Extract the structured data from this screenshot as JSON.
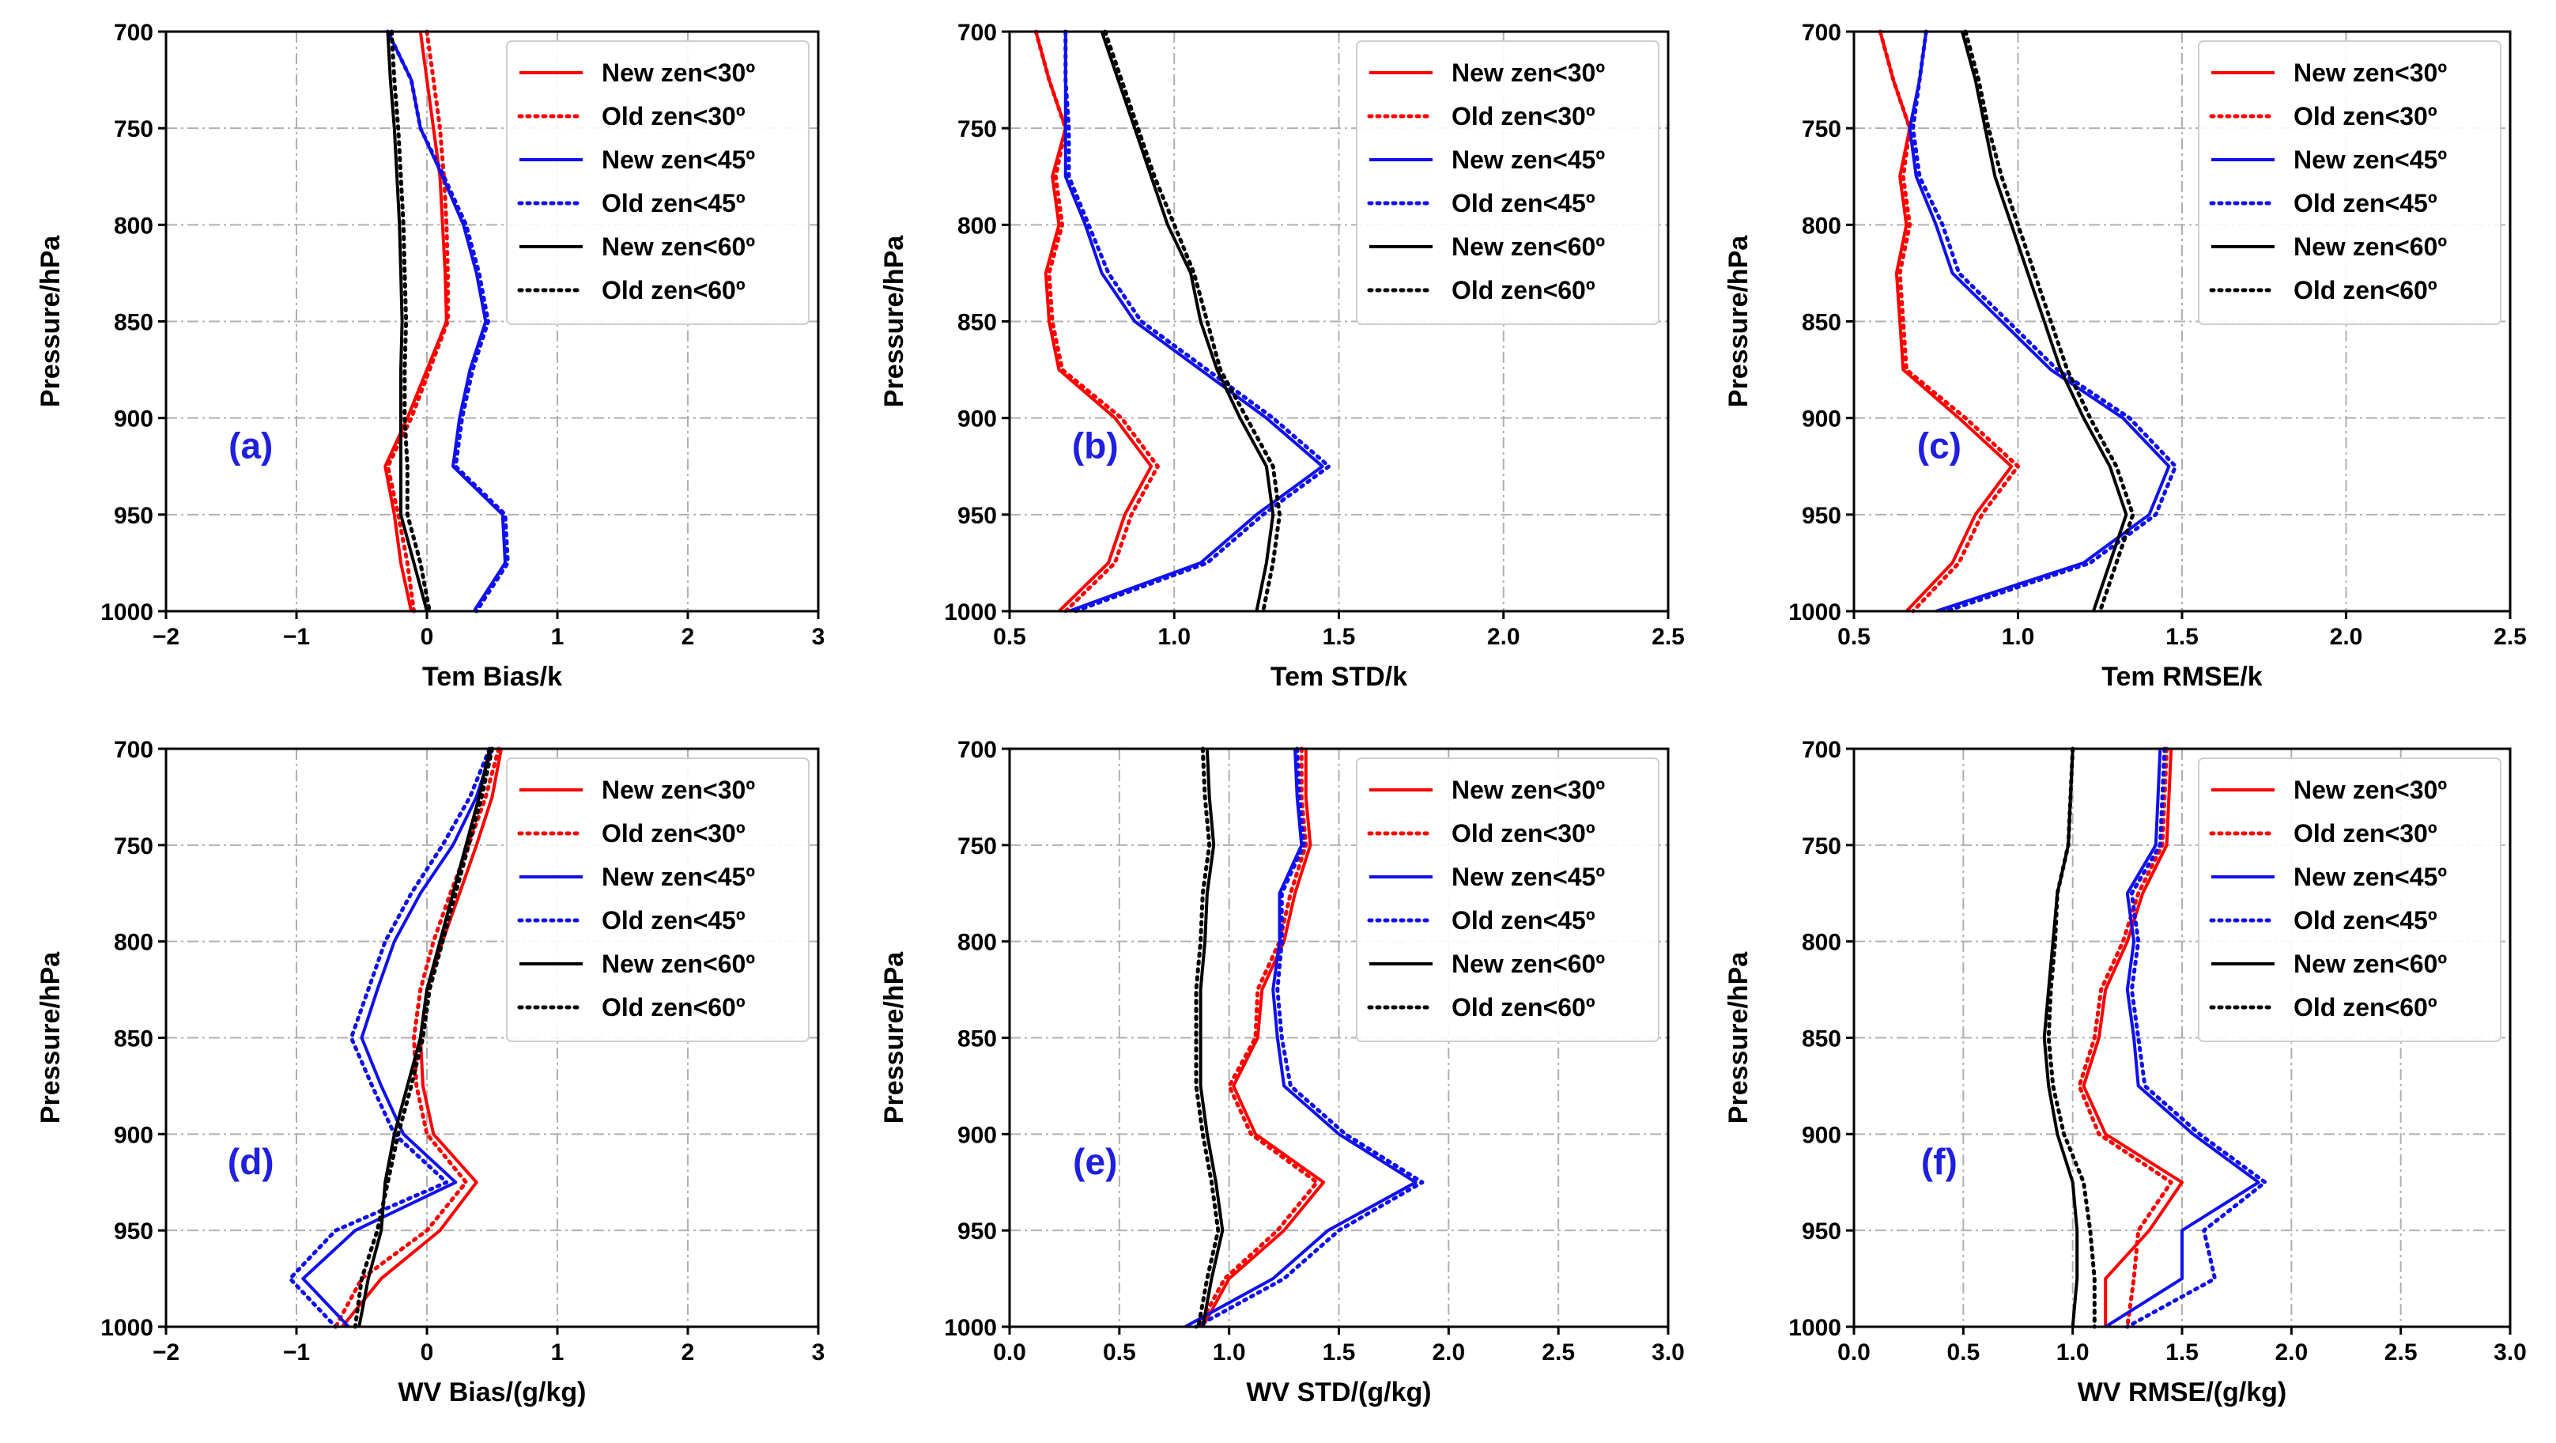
{
  "figure": {
    "colors": {
      "new30": "#ff0000",
      "old30": "#ff0000",
      "new45": "#1010ee",
      "old45": "#1010ee",
      "new60": "#000000",
      "old60": "#000000",
      "grid": "#b0b0b0"
    }
  },
  "chart_data": [
    {
      "type": "line",
      "panel": "(a)",
      "xlabel": "Tem Bias/k",
      "ylabel": "Pressure/hPa",
      "xlim": [
        -2,
        3
      ],
      "xticks": [
        -2,
        -1,
        0,
        1,
        2,
        3
      ],
      "xtick_labels": [
        "−2",
        "−1",
        "0",
        "1",
        "2",
        "3"
      ],
      "ylim": [
        700,
        1000
      ],
      "yticks": [
        700,
        750,
        800,
        850,
        900,
        950,
        1000
      ],
      "ytick_labels": [
        "700",
        "750",
        "800",
        "850",
        "900",
        "950",
        "1000"
      ],
      "grid": true,
      "legend_position": "top-right",
      "pressure": [
        700,
        725,
        750,
        775,
        800,
        825,
        850,
        875,
        900,
        925,
        950,
        975,
        1000
      ],
      "series": [
        {
          "name": "New zen<30º",
          "key": "new30",
          "style": "solid",
          "values": [
            -0.05,
            0.0,
            0.05,
            0.1,
            0.12,
            0.14,
            0.15,
            0.0,
            -0.15,
            -0.32,
            -0.25,
            -0.2,
            -0.12
          ]
        },
        {
          "name": "Old zen<30º",
          "key": "old30",
          "style": "dotted",
          "values": [
            0.0,
            0.05,
            0.1,
            0.13,
            0.15,
            0.16,
            0.16,
            0.02,
            -0.12,
            -0.3,
            -0.22,
            -0.15,
            -0.1
          ]
        },
        {
          "name": "New zen<45º",
          "key": "new45",
          "style": "solid",
          "values": [
            -0.3,
            -0.12,
            -0.05,
            0.12,
            0.28,
            0.38,
            0.45,
            0.33,
            0.25,
            0.2,
            0.58,
            0.6,
            0.36
          ]
        },
        {
          "name": "Old zen<45º",
          "key": "old45",
          "style": "dotted",
          "values": [
            -0.3,
            -0.12,
            -0.05,
            0.13,
            0.3,
            0.4,
            0.47,
            0.35,
            0.27,
            0.22,
            0.6,
            0.62,
            0.38
          ]
        },
        {
          "name": "New zen<60º",
          "key": "new60",
          "style": "solid",
          "values": [
            -0.3,
            -0.28,
            -0.25,
            -0.23,
            -0.21,
            -0.2,
            -0.19,
            -0.2,
            -0.2,
            -0.2,
            -0.2,
            -0.1,
            0.0
          ]
        },
        {
          "name": "Old zen<60º",
          "key": "old60",
          "style": "dotted",
          "values": [
            -0.27,
            -0.25,
            -0.22,
            -0.2,
            -0.18,
            -0.17,
            -0.16,
            -0.17,
            -0.17,
            -0.15,
            -0.15,
            -0.05,
            0.02
          ]
        }
      ]
    },
    {
      "type": "line",
      "panel": "(b)",
      "xlabel": "Tem STD/k",
      "ylabel": "Pressure/hPa",
      "xlim": [
        0.5,
        2.5
      ],
      "xticks": [
        0.5,
        1.0,
        1.5,
        2.0,
        2.5
      ],
      "xtick_labels": [
        "0.5",
        "1.0",
        "1.5",
        "2.0",
        "2.5"
      ],
      "ylim": [
        700,
        1000
      ],
      "yticks": [
        700,
        750,
        800,
        850,
        900,
        950,
        1000
      ],
      "ytick_labels": [
        "700",
        "750",
        "800",
        "850",
        "900",
        "950",
        "1000"
      ],
      "grid": true,
      "legend_position": "top-right",
      "pressure": [
        700,
        725,
        750,
        775,
        800,
        825,
        850,
        875,
        900,
        925,
        950,
        975,
        1000
      ],
      "series": [
        {
          "name": "New zen<30º",
          "key": "new30",
          "style": "solid",
          "values": [
            0.58,
            0.62,
            0.67,
            0.63,
            0.65,
            0.61,
            0.62,
            0.65,
            0.82,
            0.93,
            0.85,
            0.8,
            0.65
          ]
        },
        {
          "name": "Old zen<30º",
          "key": "old30",
          "style": "dotted",
          "values": [
            0.58,
            0.62,
            0.67,
            0.64,
            0.66,
            0.62,
            0.63,
            0.66,
            0.84,
            0.95,
            0.87,
            0.82,
            0.67
          ]
        },
        {
          "name": "New zen<45º",
          "key": "new45",
          "style": "solid",
          "values": [
            0.67,
            0.67,
            0.67,
            0.67,
            0.73,
            0.78,
            0.88,
            1.08,
            1.28,
            1.45,
            1.25,
            1.08,
            0.68
          ]
        },
        {
          "name": "Old zen<45º",
          "key": "old45",
          "style": "dotted",
          "values": [
            0.67,
            0.67,
            0.68,
            0.68,
            0.74,
            0.8,
            0.9,
            1.1,
            1.3,
            1.47,
            1.27,
            1.1,
            0.7
          ]
        },
        {
          "name": "New zen<60º",
          "key": "new60",
          "style": "solid",
          "values": [
            0.78,
            0.83,
            0.88,
            0.93,
            0.98,
            1.05,
            1.08,
            1.13,
            1.2,
            1.28,
            1.3,
            1.28,
            1.25
          ]
        },
        {
          "name": "Old zen<60º",
          "key": "old60",
          "style": "dotted",
          "values": [
            0.79,
            0.84,
            0.89,
            0.94,
            1.0,
            1.06,
            1.1,
            1.14,
            1.22,
            1.3,
            1.32,
            1.3,
            1.27
          ]
        }
      ]
    },
    {
      "type": "line",
      "panel": "(c)",
      "xlabel": "Tem RMSE/k",
      "ylabel": "Pressure/hPa",
      "xlim": [
        0.5,
        2.5
      ],
      "xticks": [
        0.5,
        1.0,
        1.5,
        2.0,
        2.5
      ],
      "xtick_labels": [
        "0.5",
        "1.0",
        "1.5",
        "2.0",
        "2.5"
      ],
      "ylim": [
        700,
        1000
      ],
      "yticks": [
        700,
        750,
        800,
        850,
        900,
        950,
        1000
      ],
      "ytick_labels": [
        "700",
        "750",
        "800",
        "850",
        "900",
        "950",
        "1000"
      ],
      "grid": true,
      "legend_position": "top-right",
      "pressure": [
        700,
        725,
        750,
        775,
        800,
        825,
        850,
        875,
        900,
        925,
        950,
        975,
        1000
      ],
      "series": [
        {
          "name": "New zen<30º",
          "key": "new30",
          "style": "solid",
          "values": [
            0.58,
            0.62,
            0.67,
            0.64,
            0.66,
            0.63,
            0.64,
            0.65,
            0.82,
            0.98,
            0.87,
            0.8,
            0.66
          ]
        },
        {
          "name": "Old zen<30º",
          "key": "old30",
          "style": "dotted",
          "values": [
            0.58,
            0.62,
            0.67,
            0.65,
            0.67,
            0.64,
            0.65,
            0.66,
            0.84,
            1.0,
            0.89,
            0.82,
            0.68
          ]
        },
        {
          "name": "New zen<45º",
          "key": "new45",
          "style": "solid",
          "values": [
            0.72,
            0.7,
            0.67,
            0.69,
            0.75,
            0.8,
            0.95,
            1.1,
            1.32,
            1.46,
            1.4,
            1.2,
            0.75
          ]
        },
        {
          "name": "Old zen<45º",
          "key": "old45",
          "style": "dotted",
          "values": [
            0.72,
            0.7,
            0.68,
            0.7,
            0.77,
            0.82,
            0.97,
            1.12,
            1.34,
            1.48,
            1.42,
            1.22,
            0.78
          ]
        },
        {
          "name": "New zen<60º",
          "key": "new60",
          "style": "solid",
          "values": [
            0.83,
            0.87,
            0.9,
            0.93,
            0.98,
            1.03,
            1.08,
            1.13,
            1.2,
            1.28,
            1.33,
            1.28,
            1.23
          ]
        },
        {
          "name": "Old zen<60º",
          "key": "old60",
          "style": "dotted",
          "values": [
            0.84,
            0.88,
            0.91,
            0.95,
            1.0,
            1.05,
            1.1,
            1.15,
            1.22,
            1.3,
            1.35,
            1.3,
            1.25
          ]
        }
      ]
    },
    {
      "type": "line",
      "panel": "(d)",
      "xlabel": "WV Bias/(g/kg)",
      "ylabel": "Pressure/hPa",
      "xlim": [
        -2,
        3
      ],
      "xticks": [
        -2,
        -1,
        0,
        1,
        2,
        3
      ],
      "xtick_labels": [
        "−2",
        "−1",
        "0",
        "1",
        "2",
        "3"
      ],
      "ylim": [
        700,
        1000
      ],
      "yticks": [
        700,
        750,
        800,
        850,
        900,
        950,
        1000
      ],
      "ytick_labels": [
        "700",
        "750",
        "800",
        "850",
        "900",
        "950",
        "1000"
      ],
      "grid": true,
      "legend_position": "top-right",
      "pressure": [
        700,
        725,
        750,
        775,
        800,
        825,
        850,
        875,
        900,
        925,
        950,
        975,
        1000
      ],
      "series": [
        {
          "name": "New zen<30º",
          "key": "new30",
          "style": "solid",
          "values": [
            0.57,
            0.5,
            0.38,
            0.25,
            0.12,
            0.0,
            -0.05,
            -0.03,
            0.05,
            0.38,
            0.1,
            -0.35,
            -0.65
          ]
        },
        {
          "name": "Old zen<30º",
          "key": "old30",
          "style": "dotted",
          "values": [
            0.55,
            0.45,
            0.32,
            0.18,
            0.05,
            -0.05,
            -0.1,
            -0.08,
            0.0,
            0.3,
            0.0,
            -0.5,
            -0.7
          ]
        },
        {
          "name": "New zen<45º",
          "key": "new45",
          "style": "solid",
          "values": [
            0.5,
            0.38,
            0.2,
            -0.05,
            -0.25,
            -0.38,
            -0.5,
            -0.35,
            -0.18,
            0.22,
            -0.55,
            -0.95,
            -0.6
          ]
        },
        {
          "name": "Old zen<45º",
          "key": "old45",
          "style": "dotted",
          "values": [
            0.48,
            0.33,
            0.12,
            -0.12,
            -0.32,
            -0.45,
            -0.58,
            -0.42,
            -0.25,
            0.15,
            -0.7,
            -1.05,
            -0.7
          ]
        },
        {
          "name": "New zen<60º",
          "key": "new60",
          "style": "solid",
          "values": [
            0.48,
            0.4,
            0.3,
            0.2,
            0.1,
            0.0,
            -0.05,
            -0.15,
            -0.25,
            -0.32,
            -0.35,
            -0.45,
            -0.52
          ]
        },
        {
          "name": "Old zen<60º",
          "key": "old60",
          "style": "dotted",
          "values": [
            0.5,
            0.42,
            0.32,
            0.22,
            0.12,
            0.02,
            -0.03,
            -0.12,
            -0.22,
            -0.3,
            -0.38,
            -0.5,
            -0.55
          ]
        }
      ]
    },
    {
      "type": "line",
      "panel": "(e)",
      "xlabel": "WV STD/(g/kg)",
      "ylabel": "Pressure/hPa",
      "xlim": [
        0,
        3
      ],
      "xticks": [
        0,
        0.5,
        1.0,
        1.5,
        2.0,
        2.5,
        3.0
      ],
      "xtick_labels": [
        "0.0",
        "0.5",
        "1.0",
        "1.5",
        "2.0",
        "2.5",
        "3.0"
      ],
      "ylim": [
        700,
        1000
      ],
      "yticks": [
        700,
        750,
        800,
        850,
        900,
        950,
        1000
      ],
      "ytick_labels": [
        "700",
        "750",
        "800",
        "850",
        "900",
        "950",
        "1000"
      ],
      "grid": true,
      "legend_position": "top-right",
      "pressure": [
        700,
        725,
        750,
        775,
        800,
        825,
        850,
        875,
        900,
        925,
        950,
        975,
        1000
      ],
      "series": [
        {
          "name": "New zen<30º",
          "key": "new30",
          "style": "solid",
          "values": [
            1.35,
            1.35,
            1.37,
            1.3,
            1.25,
            1.15,
            1.13,
            1.02,
            1.12,
            1.43,
            1.25,
            1.0,
            0.88
          ]
        },
        {
          "name": "Old zen<30º",
          "key": "old30",
          "style": "dotted",
          "values": [
            1.33,
            1.33,
            1.35,
            1.28,
            1.23,
            1.13,
            1.12,
            1.0,
            1.1,
            1.4,
            1.22,
            0.98,
            0.86
          ]
        },
        {
          "name": "New zen<45º",
          "key": "new45",
          "style": "solid",
          "values": [
            1.3,
            1.31,
            1.33,
            1.23,
            1.23,
            1.2,
            1.22,
            1.25,
            1.5,
            1.85,
            1.45,
            1.2,
            0.8
          ]
        },
        {
          "name": "Old zen<45º",
          "key": "old45",
          "style": "dotted",
          "values": [
            1.31,
            1.32,
            1.34,
            1.24,
            1.24,
            1.22,
            1.24,
            1.28,
            1.53,
            1.88,
            1.5,
            1.25,
            0.85
          ]
        },
        {
          "name": "New zen<60º",
          "key": "new60",
          "style": "solid",
          "values": [
            0.9,
            0.91,
            0.93,
            0.9,
            0.89,
            0.87,
            0.87,
            0.87,
            0.9,
            0.94,
            0.97,
            0.92,
            0.88
          ]
        },
        {
          "name": "Old zen<60º",
          "key": "old60",
          "style": "dotted",
          "values": [
            0.88,
            0.89,
            0.91,
            0.88,
            0.87,
            0.85,
            0.85,
            0.85,
            0.88,
            0.92,
            0.95,
            0.9,
            0.86
          ]
        }
      ]
    },
    {
      "type": "line",
      "panel": "(f)",
      "xlabel": "WV RMSE/(g/kg)",
      "ylabel": "Pressure/hPa",
      "xlim": [
        0,
        3
      ],
      "xticks": [
        0,
        0.5,
        1.0,
        1.5,
        2.0,
        2.5,
        3.0
      ],
      "xtick_labels": [
        "0.0",
        "0.5",
        "1.0",
        "1.5",
        "2.0",
        "2.5",
        "3.0"
      ],
      "ylim": [
        700,
        1000
      ],
      "yticks": [
        700,
        750,
        800,
        850,
        900,
        950,
        1000
      ],
      "ytick_labels": [
        "700",
        "750",
        "800",
        "850",
        "900",
        "950",
        "1000"
      ],
      "grid": true,
      "legend_position": "top-right",
      "pressure": [
        700,
        725,
        750,
        775,
        800,
        825,
        850,
        875,
        900,
        925,
        950,
        975,
        1000
      ],
      "series": [
        {
          "name": "New zen<30º",
          "key": "new30",
          "style": "solid",
          "values": [
            1.45,
            1.44,
            1.43,
            1.32,
            1.25,
            1.15,
            1.12,
            1.05,
            1.15,
            1.5,
            1.35,
            1.15,
            1.15
          ]
        },
        {
          "name": "Old zen<30º",
          "key": "old30",
          "style": "dotted",
          "values": [
            1.43,
            1.42,
            1.41,
            1.3,
            1.23,
            1.13,
            1.1,
            1.03,
            1.12,
            1.45,
            1.3,
            1.28,
            1.25
          ]
        },
        {
          "name": "New zen<45º",
          "key": "new45",
          "style": "solid",
          "values": [
            1.4,
            1.39,
            1.38,
            1.25,
            1.28,
            1.25,
            1.28,
            1.3,
            1.55,
            1.85,
            1.5,
            1.5,
            1.15
          ]
        },
        {
          "name": "Old zen<45º",
          "key": "old45",
          "style": "dotted",
          "values": [
            1.42,
            1.41,
            1.4,
            1.27,
            1.3,
            1.27,
            1.3,
            1.33,
            1.58,
            1.88,
            1.6,
            1.65,
            1.25
          ]
        },
        {
          "name": "New zen<60º",
          "key": "new60",
          "style": "solid",
          "values": [
            1.0,
            0.99,
            0.98,
            0.93,
            0.91,
            0.89,
            0.87,
            0.89,
            0.93,
            1.0,
            1.02,
            1.02,
            1.0
          ]
        },
        {
          "name": "Old zen<60º",
          "key": "old60",
          "style": "dotted",
          "values": [
            1.0,
            0.99,
            0.98,
            0.93,
            0.92,
            0.9,
            0.89,
            0.91,
            0.96,
            1.05,
            1.08,
            1.1,
            1.1
          ]
        }
      ]
    }
  ]
}
